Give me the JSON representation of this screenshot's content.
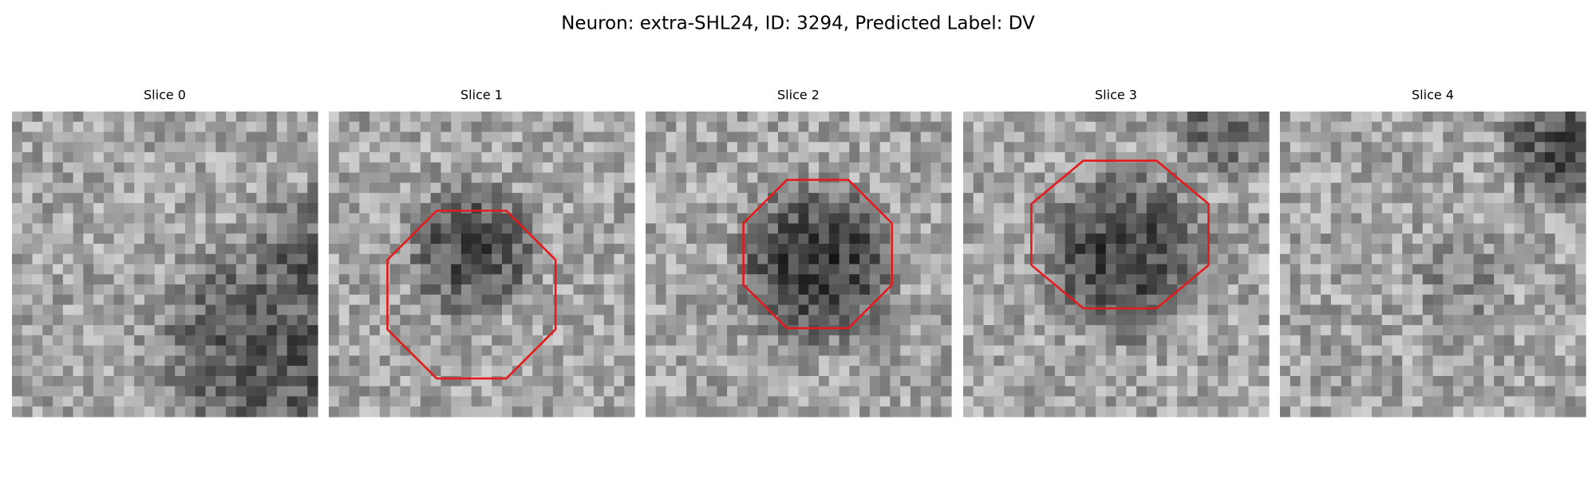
{
  "title": "Neuron: extra-SHL24, ID: 3294, Predicted Label: DV",
  "panels": [
    {
      "title": "Slice 0"
    },
    {
      "title": "Slice 1"
    },
    {
      "title": "Slice 2"
    },
    {
      "title": "Slice 3"
    },
    {
      "title": "Slice 4"
    }
  ]
}
